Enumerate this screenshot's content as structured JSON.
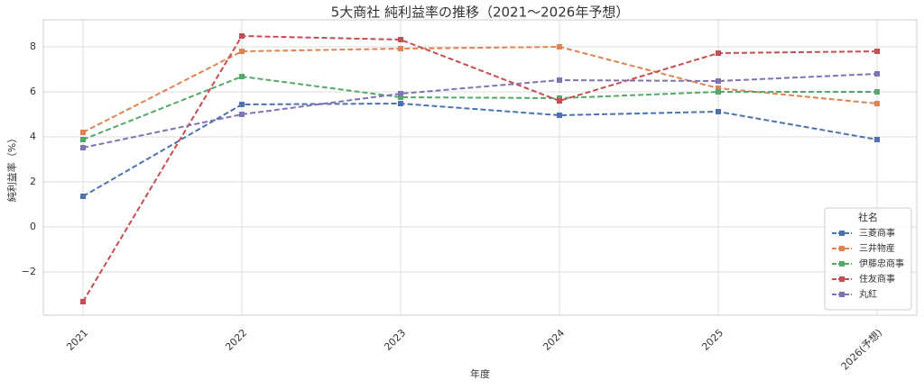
{
  "chart_data": {
    "type": "line",
    "title": "5大商社 純利益率の推移（2021〜2026年予想）",
    "x_label": "年度",
    "y_label": "純利益率（%）",
    "categories": [
      "2021",
      "2022",
      "2023",
      "2024",
      "2025",
      "2026(予想)"
    ],
    "series": [
      {
        "name": "三菱商事",
        "color": "#4c72b0",
        "values": [
          1.36,
          5.44,
          5.48,
          4.96,
          5.12,
          3.88
        ]
      },
      {
        "name": "三井物産",
        "color": "#dd8452",
        "values": [
          4.2,
          7.8,
          7.92,
          8.0,
          6.16,
          5.48
        ]
      },
      {
        "name": "伊藤忠商事",
        "color": "#55a868",
        "values": [
          3.88,
          6.68,
          5.76,
          5.72,
          6.0,
          6.0
        ]
      },
      {
        "name": "住友商事",
        "color": "#c44e52",
        "values": [
          -3.32,
          8.48,
          8.32,
          5.6,
          7.72,
          7.8
        ]
      },
      {
        "name": "丸紅",
        "color": "#8172b3",
        "values": [
          3.52,
          5.0,
          5.92,
          6.52,
          6.48,
          6.8
        ]
      }
    ],
    "legend_title": "社名",
    "legend_position": "lower right",
    "ylim": [
      -3.92,
      9.2
    ],
    "yticks": [
      {
        "value": -2,
        "label": "−2"
      },
      0,
      2,
      4,
      6,
      8
    ],
    "grid": true
  }
}
